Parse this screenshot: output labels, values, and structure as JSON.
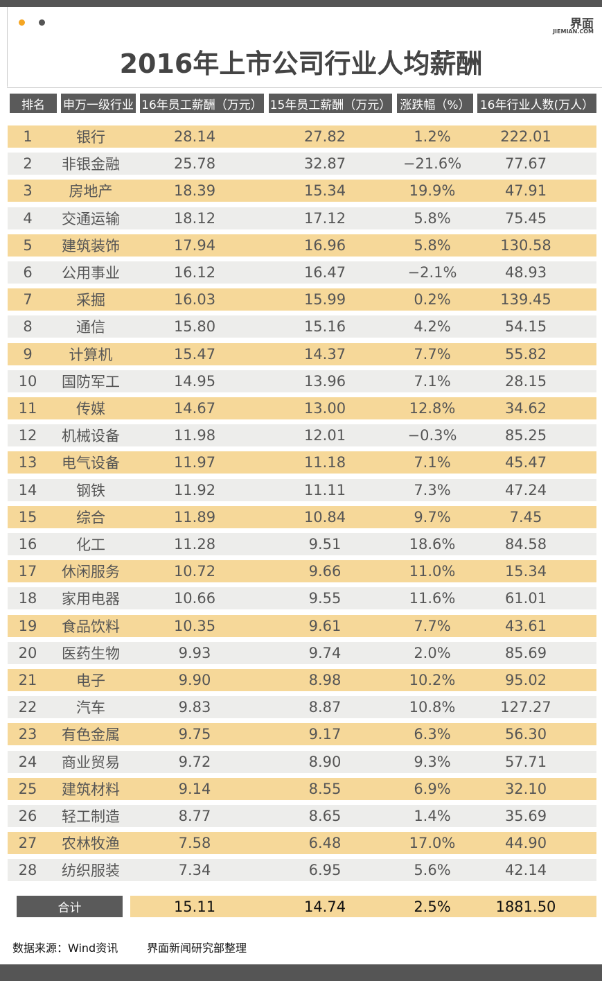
{
  "header": {
    "title": "2016年上市公司行业人均薪酬",
    "logo": "界面",
    "logo_url": "JIEMIAN.COM"
  },
  "table": {
    "columns": [
      "排名",
      "申万一级行业",
      "16年员工薪酬（万元）",
      "15年员工薪酬（万元）",
      "涨跌幅（%）",
      "16年行业人数(万人）"
    ],
    "rows": [
      [
        "1",
        "银行",
        "28.14",
        "27.82",
        "1.2%",
        "222.01"
      ],
      [
        "2",
        "非银金融",
        "25.78",
        "32.87",
        "−21.6%",
        "77.67"
      ],
      [
        "3",
        "房地产",
        "18.39",
        "15.34",
        "19.9%",
        "47.91"
      ],
      [
        "4",
        "交通运输",
        "18.12",
        "17.12",
        "5.8%",
        "75.45"
      ],
      [
        "5",
        "建筑装饰",
        "17.94",
        "16.96",
        "5.8%",
        "130.58"
      ],
      [
        "6",
        "公用事业",
        "16.12",
        "16.47",
        "−2.1%",
        "48.93"
      ],
      [
        "7",
        "采掘",
        "16.03",
        "15.99",
        "0.2%",
        "139.45"
      ],
      [
        "8",
        "通信",
        "15.80",
        "15.16",
        "4.2%",
        "54.15"
      ],
      [
        "9",
        "计算机",
        "15.47",
        "14.37",
        "7.7%",
        "55.82"
      ],
      [
        "10",
        "国防军工",
        "14.95",
        "13.96",
        "7.1%",
        "28.15"
      ],
      [
        "11",
        "传媒",
        "14.67",
        "13.00",
        "12.8%",
        "34.62"
      ],
      [
        "12",
        "机械设备",
        "11.98",
        "12.01",
        "−0.3%",
        "85.25"
      ],
      [
        "13",
        "电气设备",
        "11.97",
        "11.18",
        "7.1%",
        "45.47"
      ],
      [
        "14",
        "钢铁",
        "11.92",
        "11.11",
        "7.3%",
        "47.24"
      ],
      [
        "15",
        "综合",
        "11.89",
        "10.84",
        "9.7%",
        "7.45"
      ],
      [
        "16",
        "化工",
        "11.28",
        "9.51",
        "18.6%",
        "84.58"
      ],
      [
        "17",
        "休闲服务",
        "10.72",
        "9.66",
        "11.0%",
        "15.34"
      ],
      [
        "18",
        "家用电器",
        "10.66",
        "9.55",
        "11.6%",
        "61.01"
      ],
      [
        "19",
        "食品饮料",
        "10.35",
        "9.61",
        "7.7%",
        "43.61"
      ],
      [
        "20",
        "医药生物",
        "9.93",
        "9.74",
        "2.0%",
        "85.69"
      ],
      [
        "21",
        "电子",
        "9.90",
        "8.98",
        "10.2%",
        "95.02"
      ],
      [
        "22",
        "汽车",
        "9.83",
        "8.87",
        "10.8%",
        "127.27"
      ],
      [
        "23",
        "有色金属",
        "9.75",
        "9.17",
        "6.3%",
        "56.30"
      ],
      [
        "24",
        "商业贸易",
        "9.72",
        "8.90",
        "9.3%",
        "57.71"
      ],
      [
        "25",
        "建筑材料",
        "9.14",
        "8.55",
        "6.9%",
        "32.10"
      ],
      [
        "26",
        "轻工制造",
        "8.77",
        "8.65",
        "1.4%",
        "35.69"
      ],
      [
        "27",
        "农林牧渔",
        "7.58",
        "6.48",
        "17.0%",
        "44.90"
      ],
      [
        "28",
        "纺织服装",
        "7.34",
        "6.95",
        "5.6%",
        "42.14"
      ]
    ],
    "total": {
      "label": "合计",
      "values": [
        "15.11",
        "14.74",
        "2.5%",
        "1881.50"
      ]
    }
  },
  "footer": {
    "source": "数据来源：Wind资讯",
    "credit": "界面新闻研究部整理"
  }
}
